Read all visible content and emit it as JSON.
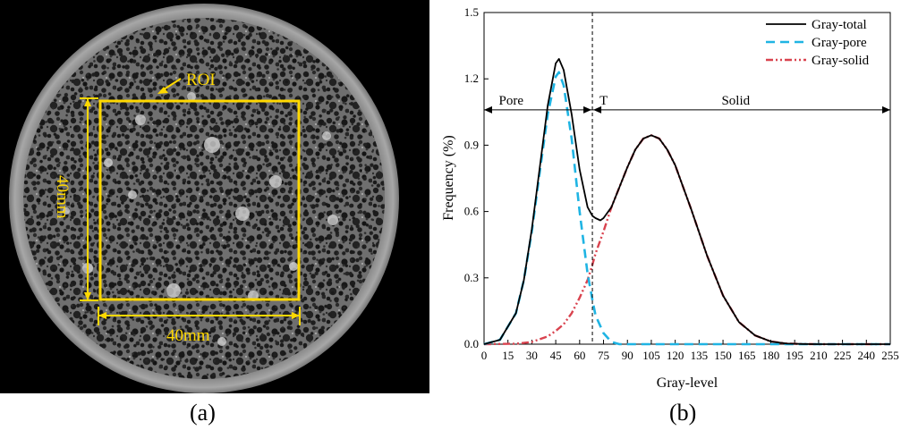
{
  "panel_a": {
    "label": "(a)",
    "roi_label": "ROI",
    "width_label": "40mm",
    "height_label": "40mm",
    "annotation_color": "#ffd800"
  },
  "panel_b": {
    "label": "(b)",
    "region_labels": {
      "pore": "Pore",
      "threshold": "T",
      "solid": "Solid"
    }
  },
  "chart_data": {
    "type": "line",
    "xlabel": "Gray-level",
    "ylabel": "Frequency (%)",
    "xlim": [
      0,
      255
    ],
    "ylim": [
      0,
      1.5
    ],
    "xticks": [
      0,
      15,
      30,
      45,
      60,
      75,
      90,
      105,
      120,
      135,
      150,
      165,
      180,
      195,
      210,
      225,
      240,
      255
    ],
    "yticks": [
      0.0,
      0.3,
      0.6,
      0.9,
      1.2,
      1.5
    ],
    "ytick_labels": [
      "0.0",
      "0.3",
      "0.6",
      "0.9",
      "1.2",
      "1.5"
    ],
    "grid": false,
    "legend_position": "top-right",
    "threshold_x": 68,
    "series": [
      {
        "name": "Gray-total",
        "color": "#000000",
        "style": "solid",
        "x": [
          0,
          10,
          20,
          25,
          30,
          35,
          40,
          45,
          47,
          50,
          55,
          60,
          65,
          68,
          70,
          73,
          75,
          80,
          85,
          90,
          95,
          100,
          105,
          110,
          115,
          120,
          130,
          140,
          150,
          160,
          170,
          180,
          190,
          200,
          210,
          255
        ],
        "y": [
          0.0,
          0.02,
          0.14,
          0.29,
          0.52,
          0.8,
          1.08,
          1.27,
          1.29,
          1.24,
          1.04,
          0.79,
          0.62,
          0.58,
          0.57,
          0.56,
          0.57,
          0.62,
          0.71,
          0.8,
          0.88,
          0.93,
          0.945,
          0.93,
          0.88,
          0.81,
          0.61,
          0.4,
          0.22,
          0.1,
          0.04,
          0.012,
          0.003,
          0.001,
          0.0,
          0.0
        ]
      },
      {
        "name": "Gray-pore",
        "color": "#1fb4e3",
        "style": "dashed",
        "x": [
          0,
          10,
          20,
          25,
          30,
          35,
          40,
          45,
          47,
          50,
          55,
          60,
          65,
          68,
          70,
          75,
          80,
          85,
          90,
          100,
          255
        ],
        "y": [
          0.0,
          0.02,
          0.14,
          0.29,
          0.51,
          0.78,
          1.04,
          1.21,
          1.23,
          1.17,
          0.93,
          0.6,
          0.32,
          0.2,
          0.13,
          0.05,
          0.01,
          0.0,
          0.0,
          0.0,
          0.0
        ]
      },
      {
        "name": "Gray-solid",
        "color": "#d9434f",
        "style": "dash-dot-dot",
        "x": [
          0,
          20,
          30,
          40,
          45,
          50,
          55,
          60,
          65,
          68,
          70,
          75,
          80,
          85,
          90,
          95,
          100,
          105,
          110,
          115,
          120,
          130,
          140,
          150,
          160,
          170,
          180,
          190,
          200,
          210,
          255
        ],
        "y": [
          0.0,
          0.002,
          0.01,
          0.035,
          0.06,
          0.09,
          0.14,
          0.21,
          0.29,
          0.36,
          0.41,
          0.51,
          0.62,
          0.71,
          0.8,
          0.88,
          0.93,
          0.945,
          0.93,
          0.88,
          0.81,
          0.61,
          0.4,
          0.22,
          0.1,
          0.04,
          0.012,
          0.003,
          0.001,
          0.0,
          0.0
        ]
      }
    ]
  }
}
